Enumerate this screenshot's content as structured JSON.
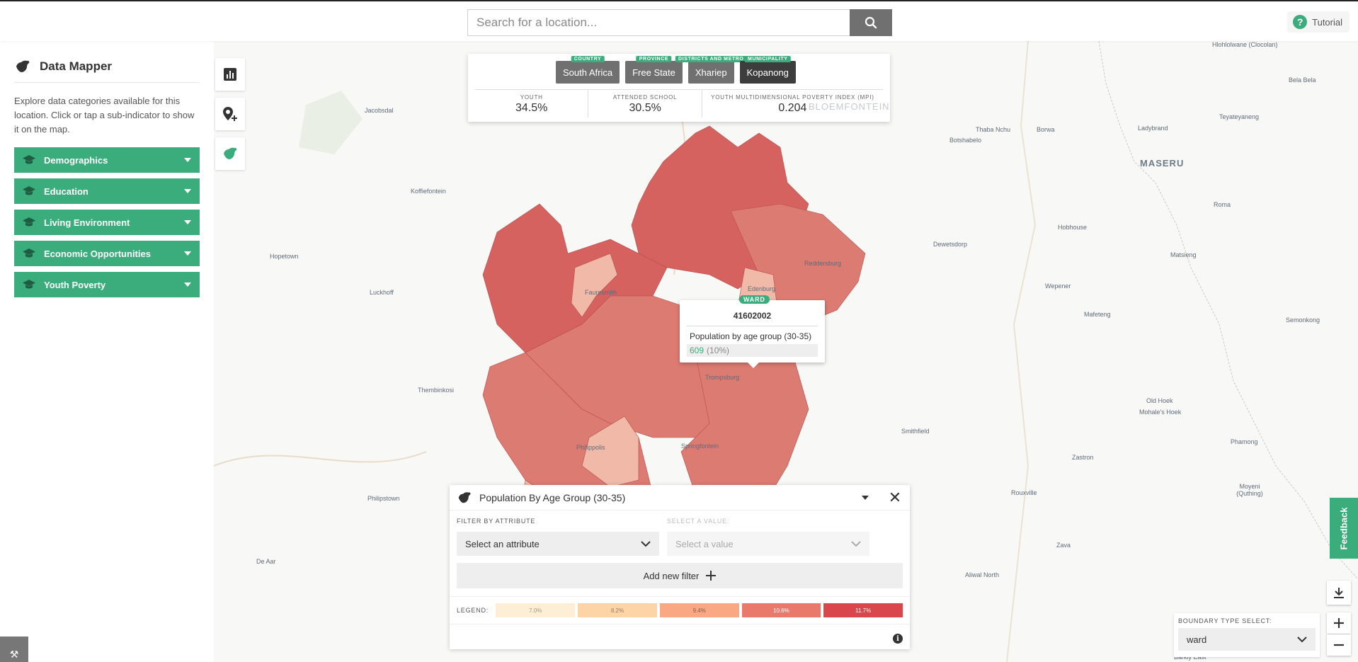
{
  "header": {
    "search_placeholder": "Search for a location...",
    "tutorial_label": "Tutorial"
  },
  "sidebar": {
    "title": "Data Mapper",
    "description": "Explore data categories available for this location. Click or tap a sub-indicator to show it on the map.",
    "categories": [
      {
        "label": "Demographics"
      },
      {
        "label": "Education"
      },
      {
        "label": "Living Environment"
      },
      {
        "label": "Economic Opportunities"
      },
      {
        "label": "Youth Poverty"
      }
    ]
  },
  "location": {
    "breadcrumbs": [
      {
        "tag": "COUNTRY",
        "label": "South Africa"
      },
      {
        "tag": "PROVINCE",
        "label": "Free State"
      },
      {
        "tag": "DISTRICTS AND METRO",
        "label": "Xhariep"
      },
      {
        "tag": "MUNICIPALITY",
        "label": "Kopanong"
      }
    ],
    "stats": [
      {
        "label": "YOUTH",
        "value": "34.5%"
      },
      {
        "label": "ATTENDED SCHOOL",
        "value": "30.5%"
      },
      {
        "label": "YOUTH MULTIDIMENSIONAL POVERTY INDEX (MPI)",
        "value": "0.204"
      }
    ]
  },
  "map_labels": [
    "Hlohlolwane (Clocolan)",
    "Bela Bela",
    "Teyateyaneng",
    "Thaba Nchu",
    "Borwa",
    "Ladybrand",
    "Botshabelo",
    "MASERU",
    "Jacobsdal",
    "Koffiefontein",
    "Roma",
    "Hobhouse",
    "Dewetsdorp",
    "Hopetown",
    "Matsieng",
    "Luckhoff",
    "Wepener",
    "Reddersburg",
    "Fauresmith",
    "Edenburg",
    "Mafeteng",
    "Semonkong",
    "Trompsburg",
    "Thembinkosi",
    "Old Hoek",
    "Mohale's Hoek",
    "Smithfield",
    "Philippolis",
    "Springfontein",
    "Phamong",
    "Zastron",
    "Philipstown",
    "Rouxville",
    "Moyeni (Quthing)",
    "Zava",
    "De Aar",
    "Aliwal North",
    "Barkly East",
    "BLOEMFONTEIN"
  ],
  "tooltip": {
    "tag": "WARD",
    "code": "41602002",
    "indicator": "Population by age group (30-35)",
    "value": "609",
    "percent": "(10%)"
  },
  "panel": {
    "title": "Population By Age Group (30-35)",
    "filter_label": "FILTER BY ATTRIBUTE",
    "filter_value": "Select an attribute",
    "value_label": "SELECT A VALUE:",
    "value_placeholder": "Select a value",
    "add_filter": "Add new filter",
    "legend_label": "LEGEND:",
    "legend": [
      {
        "label": "7.0%",
        "color": "#fdeed6"
      },
      {
        "label": "8.2%",
        "color": "#fdd4a6"
      },
      {
        "label": "9.4%",
        "color": "#f9a883"
      },
      {
        "label": "10.6%",
        "color": "#e97a6b"
      },
      {
        "label": "11.7%",
        "color": "#d9464c"
      }
    ]
  },
  "feedback_label": "Feedback",
  "boundary": {
    "label": "BOUNDARY TYPE SELECT:",
    "value": "ward"
  },
  "colors": {
    "accent": "#3bad7c",
    "map_dark": "#d5625f",
    "map_mid": "#dc7b72",
    "map_light": "#f0b9a8"
  },
  "icons": [
    "search-icon",
    "help-icon",
    "africa-icon",
    "bar-chart-icon",
    "add-point-icon",
    "graduation-cap-icon",
    "chevron-down-icon",
    "close-icon",
    "plus-icon",
    "info-icon",
    "download-icon",
    "tools-icon"
  ]
}
